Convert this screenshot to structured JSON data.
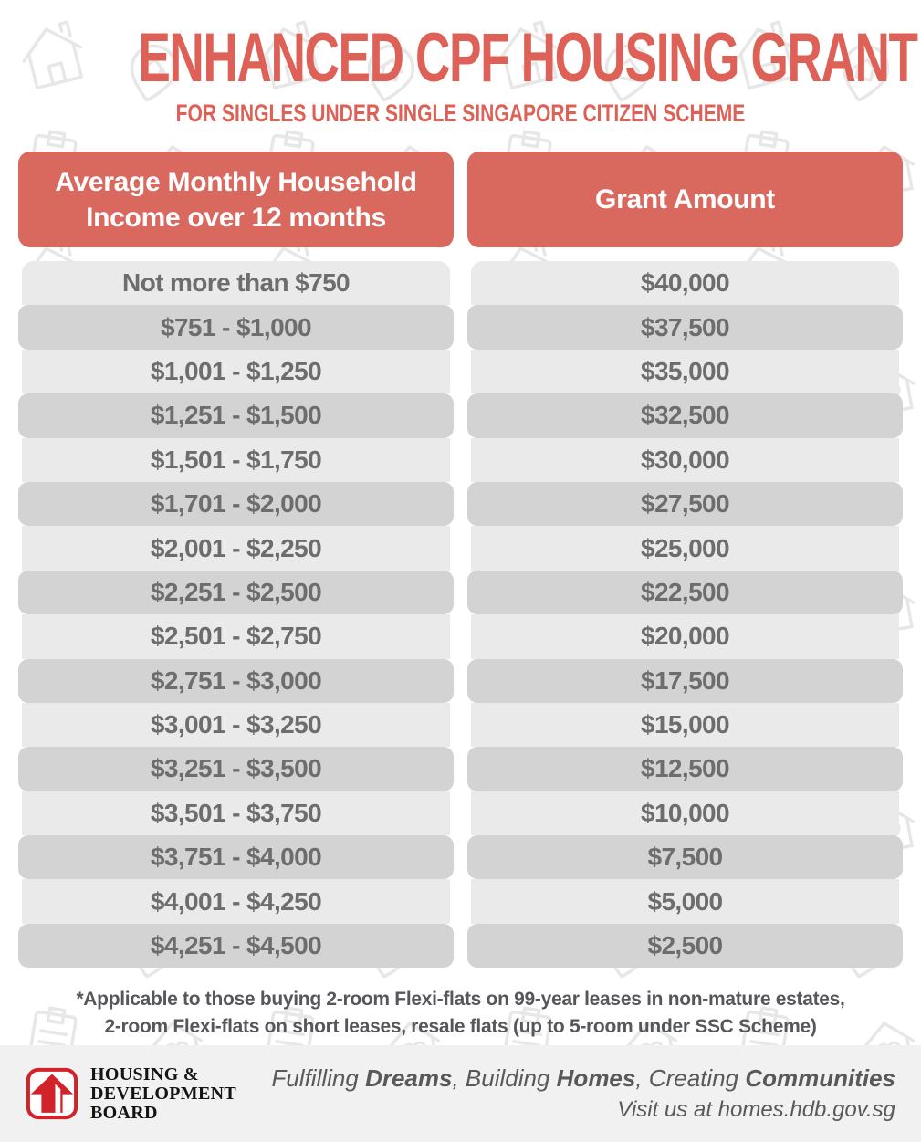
{
  "page": {
    "title": "ENHANCED CPF HOUSING GRANT",
    "subtitle": "FOR SINGLES UNDER SINGLE SINGAPORE CITIZEN SCHEME"
  },
  "table": {
    "headers": {
      "income": "Average Monthly Household Income over 12 months",
      "grant": "Grant Amount"
    },
    "rows": [
      {
        "income": "Not more than $750",
        "grant": "$40,000"
      },
      {
        "income": "$751 - $1,000",
        "grant": "$37,500"
      },
      {
        "income": "$1,001 - $1,250",
        "grant": "$35,000"
      },
      {
        "income": "$1,251 - $1,500",
        "grant": "$32,500"
      },
      {
        "income": "$1,501 - $1,750",
        "grant": "$30,000"
      },
      {
        "income": "$1,701 - $2,000",
        "grant": "$27,500"
      },
      {
        "income": "$2,001 - $2,250",
        "grant": "$25,000"
      },
      {
        "income": "$2,251 - $2,500",
        "grant": "$22,500"
      },
      {
        "income": "$2,501 - $2,750",
        "grant": "$20,000"
      },
      {
        "income": "$2,751 - $3,000",
        "grant": "$17,500"
      },
      {
        "income": "$3,001 - $3,250",
        "grant": "$15,000"
      },
      {
        "income": "$3,251 - $3,500",
        "grant": "$12,500"
      },
      {
        "income": "$3,501 - $3,750",
        "grant": "$10,000"
      },
      {
        "income": "$3,751 - $4,000",
        "grant": "$7,500"
      },
      {
        "income": "$4,001 - $4,250",
        "grant": "$5,000"
      },
      {
        "income": "$4,251 - $4,500",
        "grant": "$2,500"
      }
    ]
  },
  "footnote": {
    "line1": "*Applicable to those buying 2-room Flexi-flats on 99-year leases in non-mature estates,",
    "line2": "2-room Flexi-flats on short leases, resale flats (up to 5-room under SSC Scheme)"
  },
  "footer": {
    "logo_lines": [
      "HOUSING &",
      "DEVELOPMENT",
      "BOARD"
    ],
    "tagline_parts": [
      {
        "text": "Fulfilling ",
        "bold": false
      },
      {
        "text": "Dreams",
        "bold": true
      },
      {
        "text": ", Building ",
        "bold": false
      },
      {
        "text": "Homes",
        "bold": true
      },
      {
        "text": ", Creating ",
        "bold": false
      },
      {
        "text": "Communities",
        "bold": true
      }
    ],
    "visit": "Visit us at homes.hdb.gov.sg"
  },
  "colors": {
    "accent_coral": "#dd6157",
    "header_box_bg": "#d9695f",
    "row_light": "#eaeaea",
    "row_dark": "#d3d3d3",
    "row_text": "#6d6d6d",
    "footnote_text": "#56575a",
    "footer_bar_bg": "#f1f1f1",
    "tagline_text": "#58595b",
    "hdb_logo_red": "#d2232a"
  }
}
